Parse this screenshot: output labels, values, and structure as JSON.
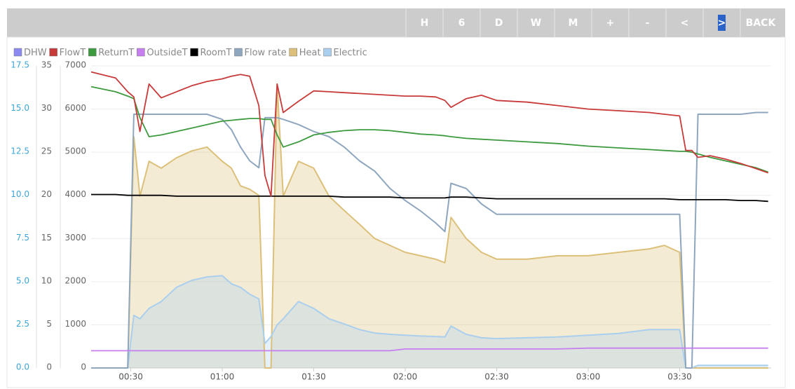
{
  "toolbar": {
    "buttons": [
      "H",
      "6",
      "D",
      "W",
      "M",
      "+",
      "-",
      "<",
      ">",
      "BACK"
    ]
  },
  "chart_data": {
    "type": "line",
    "grid": true,
    "x": [
      "00:17",
      "00:25",
      "00:29",
      "00:31",
      "00:33",
      "00:36",
      "00:40",
      "00:45",
      "00:50",
      "00:55",
      "01:00",
      "01:03",
      "01:06",
      "01:09",
      "01:12",
      "01:14",
      "01:16",
      "01:18",
      "01:20",
      "01:25",
      "01:30",
      "01:35",
      "01:40",
      "01:45",
      "01:50",
      "01:55",
      "02:00",
      "02:05",
      "02:10",
      "02:13",
      "02:15",
      "02:20",
      "02:25",
      "02:30",
      "02:40",
      "02:50",
      "03:00",
      "03:10",
      "03:20",
      "03:25",
      "03:30",
      "03:32",
      "03:34",
      "03:36",
      "03:40",
      "03:45",
      "03:50",
      "03:55",
      "03:59"
    ],
    "xlim": [
      "00:17",
      "04:00"
    ],
    "xticks": [
      "00:30",
      "01:00",
      "01:30",
      "02:00",
      "02:30",
      "03:00",
      "03:30"
    ],
    "ylim": [
      0,
      35
    ],
    "yticks": [
      0,
      5,
      10,
      15,
      20,
      25,
      30,
      35
    ],
    "y2lim": [
      0,
      7000
    ],
    "y2ticks": [
      0,
      1000,
      2000,
      3000,
      4000,
      5000,
      6000,
      7000
    ],
    "y3lim": [
      0,
      17.5
    ],
    "y3ticks": [
      {
        "value": 0,
        "label": "0.0"
      },
      2.5,
      {
        "value": 5,
        "label": "5.0"
      },
      7.5,
      {
        "value": 10,
        "label": "10.0"
      },
      12.5,
      {
        "value": 15,
        "label": "15.0"
      },
      17.5
    ],
    "series": [
      {
        "name": "DHW",
        "color": "#8a8af0",
        "values": [
          null,
          null,
          null,
          null,
          null,
          null,
          null,
          null,
          null,
          null,
          null,
          null,
          null,
          null,
          null,
          null,
          null,
          null,
          null,
          null,
          null,
          null,
          null,
          null,
          null,
          null,
          null,
          null,
          null,
          null,
          null,
          null,
          null,
          null,
          null,
          null,
          null,
          null,
          null,
          null,
          null,
          null,
          null,
          null,
          null,
          null,
          null,
          null,
          null
        ]
      },
      {
        "name": "FlowT",
        "color": "#c83a3a",
        "values": [
          34.3,
          33.6,
          32.0,
          31.4,
          27.4,
          32.9,
          31.3,
          32.0,
          32.7,
          33.2,
          33.5,
          33.8,
          34.0,
          33.8,
          30.4,
          22.3,
          19.9,
          32.9,
          29.6,
          30.9,
          32.1,
          32.0,
          31.9,
          31.8,
          31.7,
          31.6,
          31.5,
          31.5,
          31.4,
          31.0,
          30.2,
          31.2,
          31.6,
          31.0,
          30.8,
          30.4,
          30.0,
          29.8,
          29.6,
          29.4,
          29.2,
          25.2,
          25.2,
          24.4,
          24.6,
          24.2,
          23.7,
          23.1,
          22.6
        ]
      },
      {
        "name": "ReturnT",
        "color": "#3e9a3e",
        "values": [
          32.6,
          32.0,
          31.5,
          31.2,
          29.0,
          26.8,
          27.0,
          27.4,
          27.8,
          28.2,
          28.6,
          28.7,
          28.8,
          28.9,
          28.9,
          28.8,
          28.8,
          27.0,
          25.6,
          26.2,
          27.0,
          27.3,
          27.5,
          27.6,
          27.6,
          27.5,
          27.3,
          27.1,
          27.0,
          26.9,
          26.8,
          26.6,
          26.5,
          26.4,
          26.2,
          26.0,
          25.7,
          25.5,
          25.3,
          25.2,
          25.1,
          25.1,
          25.0,
          24.8,
          24.4,
          24.0,
          23.6,
          23.2,
          22.7
        ]
      },
      {
        "name": "OutsideT",
        "color": "#c77ff0",
        "values": [
          2.0,
          2.0,
          2.0,
          2.0,
          2.0,
          2.0,
          2.0,
          2.0,
          2.0,
          2.0,
          2.0,
          2.0,
          2.0,
          2.0,
          2.0,
          2.0,
          2.0,
          2.0,
          2.0,
          2.0,
          2.0,
          2.0,
          2.0,
          2.0,
          2.0,
          2.0,
          2.2,
          2.2,
          2.2,
          2.2,
          2.2,
          2.2,
          2.2,
          2.2,
          2.2,
          2.2,
          2.3,
          2.3,
          2.3,
          2.3,
          2.3,
          2.3,
          2.3,
          2.3,
          2.3,
          2.3,
          2.3,
          2.3,
          2.3
        ]
      },
      {
        "name": "RoomT",
        "color": "#000000",
        "values": [
          20.1,
          20.1,
          20.0,
          20.0,
          20.0,
          20.0,
          20.0,
          19.9,
          19.9,
          19.9,
          19.9,
          19.9,
          19.9,
          19.9,
          19.9,
          19.9,
          19.9,
          19.9,
          19.9,
          19.9,
          19.9,
          19.9,
          19.8,
          19.8,
          19.8,
          19.8,
          19.7,
          19.7,
          19.7,
          19.7,
          19.8,
          19.8,
          19.7,
          19.6,
          19.6,
          19.6,
          19.6,
          19.6,
          19.6,
          19.6,
          19.5,
          19.5,
          19.5,
          19.5,
          19.5,
          19.5,
          19.4,
          19.4,
          19.3
        ]
      },
      {
        "name": "Flow rate",
        "color": "#8ea6be",
        "axis": "y3",
        "values": [
          0,
          0,
          0,
          14.7,
          14.7,
          14.7,
          14.7,
          14.7,
          14.7,
          14.7,
          14.4,
          13.8,
          12.8,
          12.0,
          11.6,
          14.5,
          14.5,
          14.5,
          14.4,
          14.1,
          13.7,
          13.4,
          12.8,
          12.0,
          11.4,
          10.4,
          9.7,
          9.1,
          8.4,
          7.9,
          10.7,
          10.4,
          9.5,
          8.9,
          8.9,
          8.9,
          8.9,
          8.9,
          8.9,
          8.9,
          8.9,
          0,
          0,
          14.7,
          14.7,
          14.7,
          14.7,
          14.8,
          14.8
        ]
      },
      {
        "name": "Heat",
        "color": "#dcc07a",
        "axis": "y2",
        "area": true,
        "values": [
          0,
          0,
          0,
          5360,
          3980,
          4790,
          4630,
          4870,
          5030,
          5120,
          4790,
          4630,
          4220,
          4140,
          4000,
          0,
          0,
          6580,
          3980,
          4790,
          4630,
          3980,
          3650,
          3330,
          3000,
          2840,
          2680,
          2600,
          2520,
          2440,
          3490,
          3000,
          2680,
          2520,
          2520,
          2600,
          2600,
          2680,
          2760,
          2840,
          2680,
          0,
          0,
          0,
          0,
          0,
          0,
          0,
          0
        ]
      },
      {
        "name": "Electric",
        "color": "#aacfee",
        "axis": "y2",
        "area": true,
        "values": [
          0,
          0,
          0,
          1220,
          1140,
          1380,
          1540,
          1870,
          2030,
          2110,
          2140,
          1950,
          1870,
          1710,
          1600,
          570,
          730,
          1000,
          1140,
          1540,
          1380,
          1140,
          1020,
          890,
          810,
          780,
          760,
          740,
          730,
          720,
          970,
          780,
          700,
          680,
          700,
          720,
          760,
          800,
          890,
          890,
          890,
          0,
          0,
          60,
          60,
          60,
          60,
          60,
          60
        ]
      }
    ]
  }
}
